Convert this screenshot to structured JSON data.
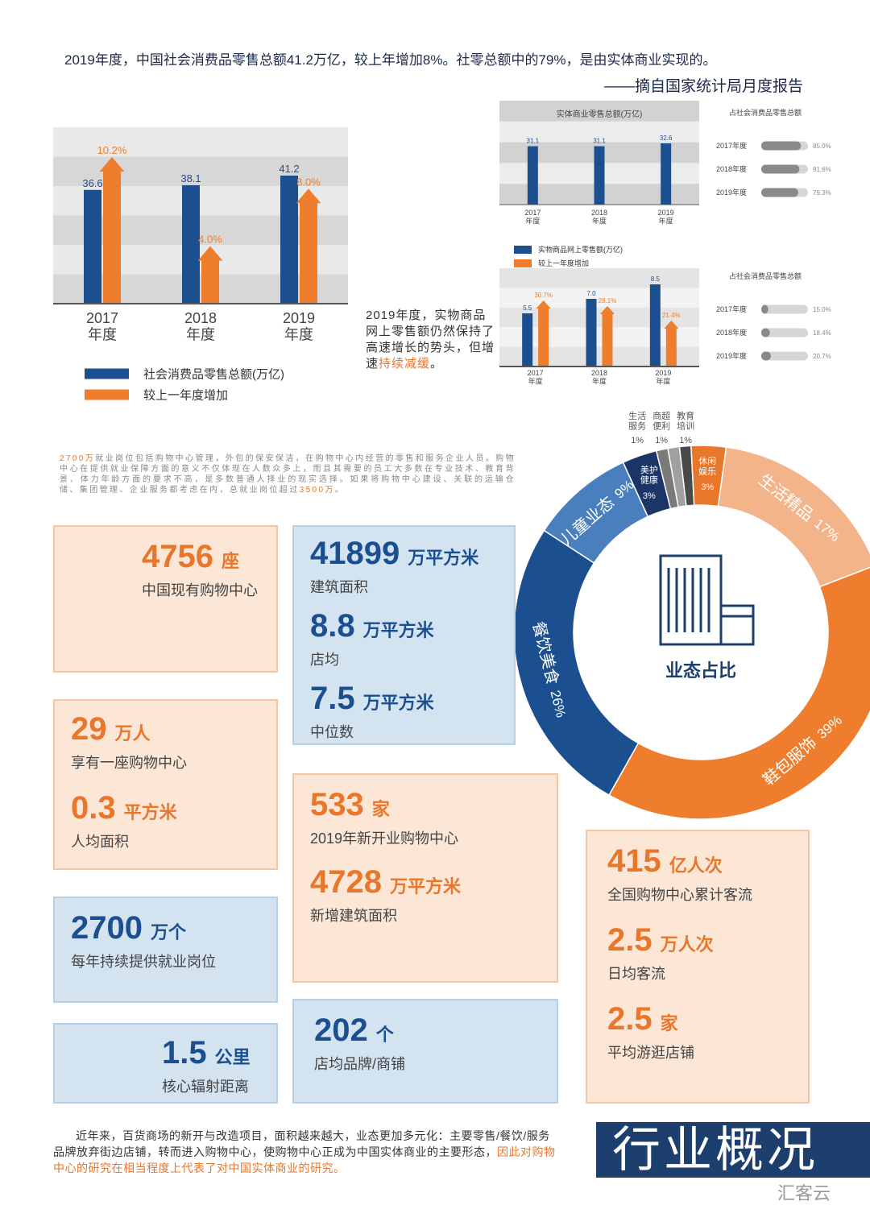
{
  "header": {
    "text": "2019年度，中国社会消费品零售总额41.2万亿，较上年增加8%。社零总额中的79%，是由实体商业实现的。",
    "source": "——摘自国家统计局月度报告"
  },
  "chart_data": [
    {
      "type": "bar",
      "categories": [
        "2017\n年度",
        "2018\n年度",
        "2019\n年度"
      ],
      "series": [
        {
          "name": "社会消费品零售总额(万亿)",
          "color": "#1c4f8f",
          "values": [
            36.6,
            38.1,
            41.2
          ]
        },
        {
          "name": "较上一年度增加",
          "color": "#ee7d2e",
          "marker": "arrow",
          "values": [
            10.2,
            4.0,
            8.0
          ],
          "value_labels": [
            "10.2%",
            "4.0%",
            "8.0%"
          ]
        }
      ]
    },
    {
      "type": "bar",
      "title": "实体商业零售总额(万亿)",
      "categories": [
        "2017\n年度",
        "2018\n年度",
        "2019\n年度"
      ],
      "values": [
        31.1,
        31.1,
        32.6
      ],
      "color": "#1c4f8f"
    },
    {
      "type": "hbar",
      "title": "占社会消费品零售总额",
      "categories": [
        "2017年度",
        "2018年度",
        "2019年度"
      ],
      "values": [
        85.0,
        81.6,
        79.3
      ],
      "value_labels": [
        "85.0%",
        "81.6%",
        "79.3%"
      ],
      "xlim": [
        0,
        100
      ],
      "color": "#8a8a8a"
    },
    {
      "type": "bar",
      "categories": [
        "2017\n年度",
        "2018\n年度",
        "2019\n年度"
      ],
      "series": [
        {
          "name": "实物商品网上零售额(万亿)",
          "color": "#1c4f8f",
          "values": [
            5.5,
            7.0,
            8.5
          ],
          "value_labels": [
            "5.5",
            "7.0",
            "8.5"
          ]
        },
        {
          "name": "较上一年度增加",
          "color": "#ee7d2e",
          "marker": "arrow",
          "values": [
            30.7,
            28.1,
            21.4
          ],
          "value_labels": [
            "30.7%",
            "28.1%",
            "21.4%"
          ]
        }
      ]
    },
    {
      "type": "hbar",
      "title": "占社会消费品零售总额",
      "categories": [
        "2017年度",
        "2018年度",
        "2019年度"
      ],
      "values": [
        15.0,
        18.4,
        20.7
      ],
      "value_labels": [
        "15.0%",
        "18.4%",
        "20.7%"
      ],
      "xlim": [
        0,
        100
      ],
      "color": "#8a8a8a"
    },
    {
      "type": "donut",
      "title": "业态占比",
      "categories": [
        "休闲\n娱乐",
        "生活精品",
        "鞋包服饰",
        "餐饮美食",
        "儿童业态",
        "美护\n健康",
        "生活\n服务",
        "商超\n便利",
        "教育\n培训"
      ],
      "values": [
        3,
        17,
        39,
        26,
        9,
        3,
        1,
        1,
        1
      ],
      "value_labels": [
        "3%",
        "17%",
        "39%",
        "26%",
        "9%",
        "3%",
        "1%",
        "1%",
        "1%"
      ],
      "colors": [
        "#e8762b",
        "#f3b48a",
        "#ee7d2e",
        "#1c4f8f",
        "#4a7fbd",
        "#1a3566",
        "#7a7a7a",
        "#a0a0a0",
        "#4a4a4a"
      ]
    }
  ],
  "annotation": [
    {
      "text": "2019年度，实物商品网上零售额仍然保持了高速增长的势头，但增速"
    },
    {
      "text": "持续减缓",
      "highlight": true
    },
    {
      "text": "。"
    }
  ],
  "intro": [
    {
      "text": "2700万",
      "highlight": true
    },
    {
      "text": "就业岗位包括购物中心管理，外包的保安保洁，在购物中心内经营的零售和服务企业人员。购物中心在提供就业保障方面的意义不仅体现在人数众多上，而且其需要的员工大多数在专业技术、教育背景、体力年龄方面的要求不高，是多数普通人择业的现实选择。如果将购物中心建设、关联的运输仓储、集团管理、企业服务都考虑在内，总就业岗位超过"
    },
    {
      "text": "3500万",
      "highlight": true
    },
    {
      "text": "。"
    }
  ],
  "stats": [
    {
      "items": [
        {
          "value": 4756,
          "unit": "座",
          "label": "中国现有购物中心"
        }
      ]
    },
    {
      "items": [
        {
          "value": 41899,
          "unit": "万平方米",
          "label": "建筑面积"
        },
        {
          "value": 8.8,
          "unit": "万平方米",
          "label": "店均"
        },
        {
          "value": 7.5,
          "unit": "万平方米",
          "label": "中位数"
        }
      ]
    },
    {
      "items": [
        {
          "value": 29,
          "unit": "万人",
          "label": "享有一座购物中心"
        },
        {
          "value": 0.3,
          "unit": "平方米",
          "label": "人均面积"
        }
      ]
    },
    {
      "items": [
        {
          "value": 533,
          "unit": "家",
          "label": "2019年新开业购物中心"
        },
        {
          "value": 4728,
          "unit": "万平方米",
          "label": "新增建筑面积"
        }
      ]
    },
    {
      "items": [
        {
          "value": 2700,
          "unit": "万个",
          "label": "每年持续提供就业岗位"
        }
      ]
    },
    {
      "items": [
        {
          "value": 1.5,
          "unit": "公里",
          "label": "核心辐射距离"
        }
      ]
    },
    {
      "items": [
        {
          "value": 202,
          "unit": "个",
          "label": "店均品牌/商铺"
        }
      ]
    },
    {
      "items": [
        {
          "value": 415,
          "unit": "亿人次",
          "label": "全国购物中心累计客流"
        },
        {
          "value": 2.5,
          "unit": "万人次",
          "label": "日均客流"
        },
        {
          "value": 2.5,
          "unit": "家",
          "label": "平均游逛店铺"
        }
      ]
    }
  ],
  "footer": [
    {
      "text": "近年来，百货商场的新开与改造项目，面积越来越大，业态更加多元化：主要零售/餐饮/服务品牌放弃街边店铺，转而进入购物中心，使购物中心正成为中国实体商业的主要形态，"
    },
    {
      "text": "因此对购物中心的研究在相当程度上代表了对中国实体商业的研究。",
      "highlight": true
    }
  ],
  "banner": "行业概况",
  "logo": "汇客云"
}
